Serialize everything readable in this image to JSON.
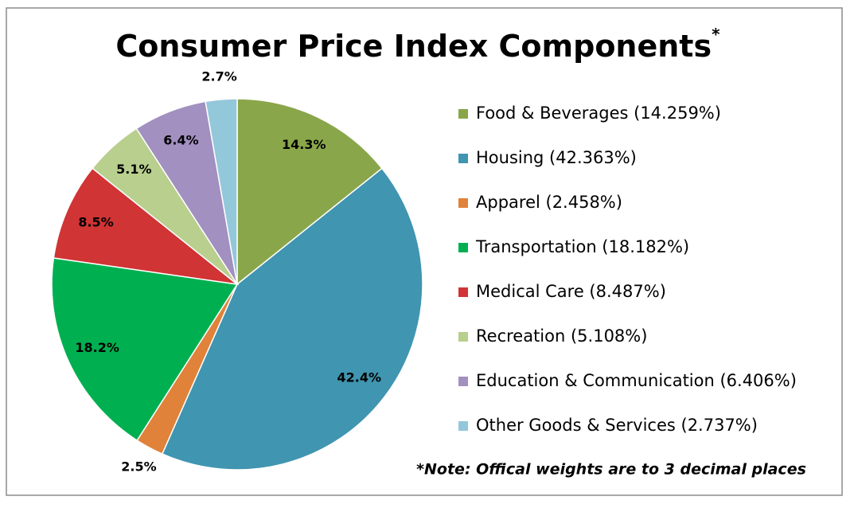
{
  "chart_data": {
    "type": "pie",
    "title": "Consumer Price Index Components",
    "title_superscript": "*",
    "note": "*Note: Offical weights are to 3 decimal places",
    "categories": [
      "Food & Beverages (14.259%)",
      "Housing (42.363%)",
      "Apparel (2.458%)",
      "Transportation (18.182%)",
      "Medical Care (8.487%)",
      "Recreation (5.108%)",
      "Education & Communication (6.406%)",
      "Other Goods & Services (2.737%)"
    ],
    "values": [
      14.259,
      42.363,
      2.458,
      18.182,
      8.487,
      5.108,
      6.406,
      2.737
    ],
    "value_labels": [
      "14.3%",
      "42.4%",
      "2.5%",
      "18.2%",
      "8.5%",
      "5.1%",
      "6.4%",
      "2.7%"
    ],
    "colors": [
      "#8aa64a",
      "#4095b0",
      "#e0823a",
      "#00b050",
      "#d03434",
      "#b8cf8e",
      "#a290c0",
      "#93c7da"
    ],
    "legend": "right"
  }
}
